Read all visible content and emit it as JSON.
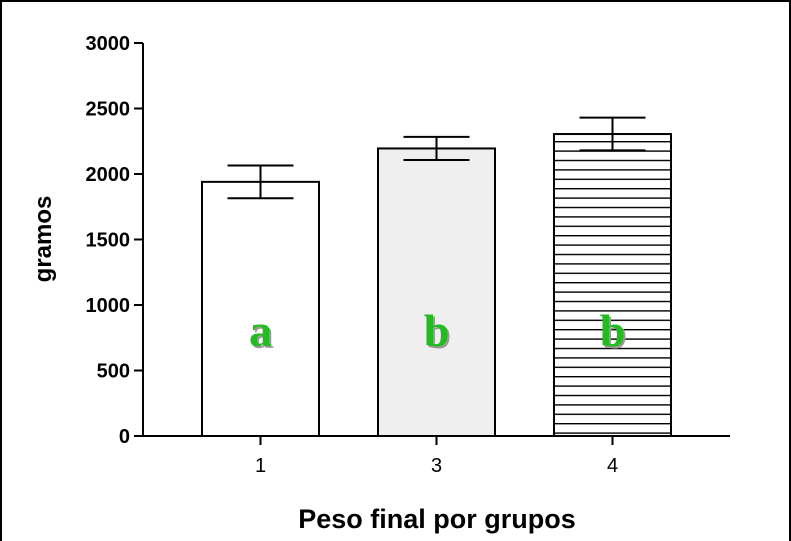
{
  "chart_data": {
    "type": "bar",
    "title": "",
    "xlabel": "Peso final por grupos",
    "ylabel": "gramos",
    "categories": [
      "1",
      "3",
      "4"
    ],
    "values": [
      1940,
      2195,
      2305
    ],
    "errors": [
      125,
      88,
      125
    ],
    "group_letters": [
      "a",
      "b",
      "b"
    ],
    "bar_fills": [
      "white",
      "light-gray",
      "horizontal-stripes"
    ],
    "ylim": [
      0,
      3000
    ],
    "yticks": [
      "0",
      "500",
      "1000",
      "1500",
      "2000",
      "2500",
      "3000"
    ],
    "letter_color": "#22bb22",
    "grid": false,
    "legend": "none"
  }
}
